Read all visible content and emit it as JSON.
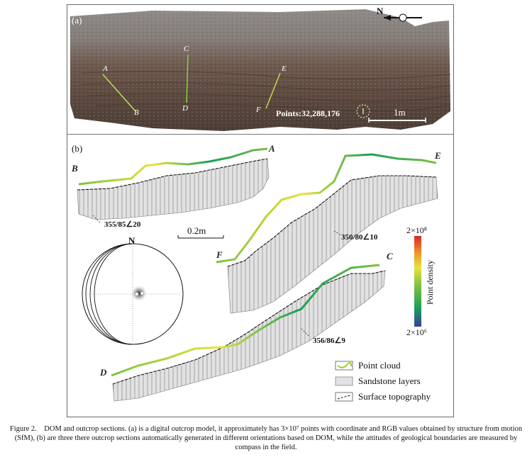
{
  "panel_a": {
    "label": "(a)",
    "section_ends": [
      "A",
      "B",
      "C",
      "D",
      "E",
      "F"
    ],
    "points_text": "Points:32,288,176",
    "scale_label": "1m",
    "north": "N"
  },
  "panel_b": {
    "label": "(b)",
    "sections": [
      "A",
      "B",
      "C",
      "D",
      "E",
      "F"
    ],
    "attitudes": [
      "355/85∠20",
      "350/80∠10",
      "356/86∠9"
    ],
    "scale_label": "0.2m",
    "stereonet_north": "N",
    "colorbar": {
      "title": "Point density",
      "max_label": "2×10⁸",
      "min_label": "2×10⁶",
      "colors": [
        "#3b3ba0",
        "#1a9e5a",
        "#7cc242",
        "#e8e23a",
        "#f0902a",
        "#d62a2a"
      ]
    },
    "legend": [
      "Point cloud",
      "Sandstone layers",
      "Surface topography"
    ]
  },
  "caption": "Figure 2. DOM and outcrop sections. (a) is a digital outcrop model, it approximately has 3×10⁷ points with coordinate and RGB values obtained by structure from motion (SfM), (b) are three there outcrop sections automatically generated in different orientations based on DOM, while the attitudes of geological boundaries are measured by compass in the field."
}
